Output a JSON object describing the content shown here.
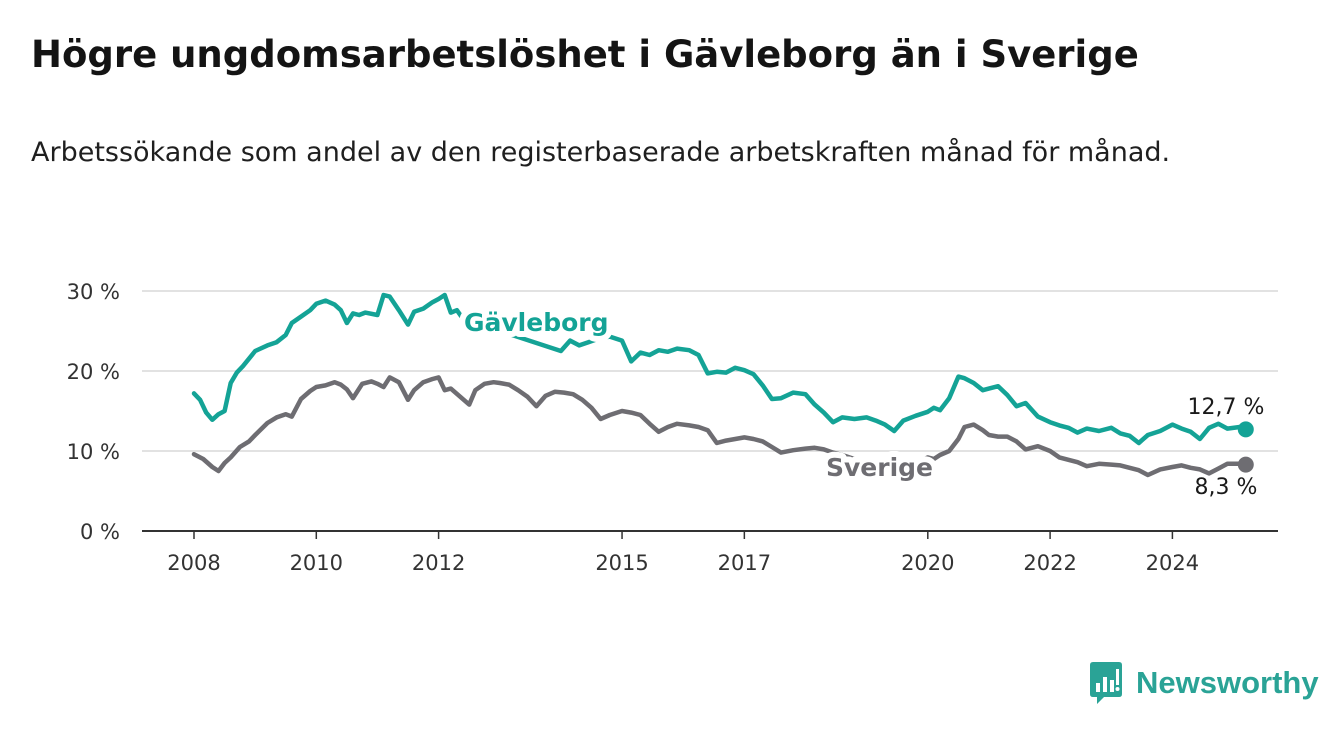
{
  "header": {
    "title": "Högre ungdomsarbetslöshet i Gävleborg än i Sverige",
    "subtitle": "Arbetssökande som andel av den registerbaserade arbetskraften månad för månad."
  },
  "brand": {
    "name": "Newsworthy",
    "icon": "bar-chart-icon",
    "color": "#2aa396"
  },
  "chart_data": {
    "type": "line",
    "title": "Högre ungdomsarbetslöshet i Gävleborg än i Sverige",
    "subtitle": "Arbetssökande som andel av den registerbaserade arbetskraften månad för månad.",
    "xlabel": "",
    "ylabel": "",
    "xlim": [
      2007.6,
      2025.8
    ],
    "ylim": [
      0,
      30
    ],
    "y_ticks": [
      0,
      10,
      20,
      30
    ],
    "y_tick_labels": [
      "0 %",
      "10 %",
      "20 %",
      "30 %"
    ],
    "x_ticks": [
      2008,
      2010,
      2012,
      2015,
      2017,
      2020,
      2022,
      2024
    ],
    "x_tick_labels": [
      "2008",
      "2010",
      "2012",
      "2015",
      "2017",
      "2020",
      "2022",
      "2024"
    ],
    "grid": true,
    "legend": "inline labels",
    "series": [
      {
        "name": "Gävleborg",
        "color": "#14a396",
        "end_label": "12,7 %",
        "x": [
          2008.0,
          2008.1,
          2008.2,
          2008.3,
          2008.4,
          2008.5,
          2008.6,
          2008.7,
          2008.8,
          2009.0,
          2009.2,
          2009.35,
          2009.5,
          2009.6,
          2009.75,
          2009.9,
          2010.0,
          2010.15,
          2010.3,
          2010.4,
          2010.5,
          2010.6,
          2010.7,
          2010.8,
          2011.0,
          2011.1,
          2011.2,
          2011.35,
          2011.5,
          2011.6,
          2011.75,
          2011.9,
          2012.0,
          2012.1,
          2012.2,
          2012.3,
          2012.4,
          2014.0,
          2014.15,
          2014.3,
          2014.45,
          2014.6,
          2014.8,
          2015.0,
          2015.15,
          2015.3,
          2015.45,
          2015.6,
          2015.75,
          2015.9,
          2016.1,
          2016.25,
          2016.4,
          2016.55,
          2016.7,
          2016.85,
          2017.0,
          2017.15,
          2017.3,
          2017.45,
          2017.6,
          2017.8,
          2018.0,
          2018.15,
          2018.3,
          2018.45,
          2018.6,
          2018.8,
          2019.0,
          2019.15,
          2019.3,
          2019.45,
          2019.6,
          2019.8,
          2020.0,
          2020.1,
          2020.2,
          2020.35,
          2020.5,
          2020.6,
          2020.75,
          2020.9,
          2021.0,
          2021.15,
          2021.3,
          2021.45,
          2021.6,
          2021.8,
          2022.0,
          2022.15,
          2022.3,
          2022.45,
          2022.6,
          2022.8,
          2023.0,
          2023.15,
          2023.3,
          2023.45,
          2023.6,
          2023.8,
          2024.0,
          2024.15,
          2024.3,
          2024.45,
          2024.6,
          2024.75,
          2024.9,
          2025.1,
          2025.2
        ],
        "y": [
          17.2,
          16.4,
          14.8,
          13.9,
          14.6,
          15.0,
          18.5,
          19.8,
          20.6,
          22.5,
          23.2,
          23.6,
          24.5,
          26.0,
          26.8,
          27.6,
          28.4,
          28.8,
          28.3,
          27.6,
          26.0,
          27.2,
          27.0,
          27.3,
          27.0,
          29.5,
          29.3,
          27.6,
          25.8,
          27.4,
          27.8,
          28.6,
          29.0,
          29.5,
          27.3,
          27.6,
          26.5,
          22.5,
          23.8,
          23.2,
          23.6,
          24.0,
          24.3,
          23.8,
          21.2,
          22.3,
          22.0,
          22.6,
          22.4,
          22.8,
          22.6,
          22.0,
          19.7,
          19.9,
          19.8,
          20.4,
          20.1,
          19.6,
          18.2,
          16.5,
          16.6,
          17.3,
          17.1,
          15.8,
          14.8,
          13.6,
          14.2,
          14.0,
          14.2,
          13.8,
          13.3,
          12.5,
          13.8,
          14.4,
          14.9,
          15.4,
          15.1,
          16.6,
          19.3,
          19.1,
          18.5,
          17.6,
          17.8,
          18.1,
          17.0,
          15.6,
          16.0,
          14.3,
          13.6,
          13.2,
          12.9,
          12.3,
          12.8,
          12.5,
          12.9,
          12.2,
          11.9,
          11.0,
          12.0,
          12.5,
          13.3,
          12.8,
          12.4,
          11.5,
          12.9,
          13.4,
          12.8,
          13.0,
          12.7
        ]
      },
      {
        "name": "Sverige",
        "color": "#6e6d72",
        "end_label": "8,3 %",
        "x": [
          2008.0,
          2008.15,
          2008.3,
          2008.4,
          2008.5,
          2008.6,
          2008.75,
          2008.9,
          2009.0,
          2009.2,
          2009.35,
          2009.5,
          2009.6,
          2009.75,
          2009.9,
          2010.0,
          2010.15,
          2010.3,
          2010.4,
          2010.5,
          2010.6,
          2010.75,
          2010.9,
          2011.0,
          2011.1,
          2011.2,
          2011.35,
          2011.5,
          2011.6,
          2011.75,
          2011.9,
          2012.0,
          2012.1,
          2012.2,
          2012.35,
          2012.5,
          2012.6,
          2012.75,
          2012.9,
          2013.0,
          2013.15,
          2013.3,
          2013.45,
          2013.6,
          2013.75,
          2013.9,
          2014.05,
          2014.2,
          2014.35,
          2014.5,
          2014.65,
          2014.8,
          2015.0,
          2015.15,
          2015.3,
          2015.45,
          2015.6,
          2015.75,
          2015.9,
          2016.1,
          2016.25,
          2016.4,
          2016.55,
          2016.7,
          2016.85,
          2017.0,
          2017.15,
          2017.3,
          2017.45,
          2017.6,
          2017.8,
          2018.0,
          2018.15,
          2018.3,
          2018.45,
          2018.6,
          2018.8,
          2019.0,
          2019.15,
          2019.3,
          2019.45,
          2019.6,
          2019.8,
          2020.0,
          2020.1,
          2020.2,
          2020.35,
          2020.5,
          2020.6,
          2020.75,
          2020.9,
          2021.0,
          2021.15,
          2021.3,
          2021.45,
          2021.6,
          2021.8,
          2022.0,
          2022.15,
          2022.3,
          2022.45,
          2022.6,
          2022.8,
          2023.0,
          2023.15,
          2023.3,
          2023.45,
          2023.6,
          2023.8,
          2024.0,
          2024.15,
          2024.3,
          2024.45,
          2024.6,
          2024.75,
          2024.9,
          2025.1,
          2025.2
        ],
        "y": [
          9.6,
          9.0,
          8.0,
          7.5,
          8.5,
          9.2,
          10.5,
          11.2,
          12.0,
          13.5,
          14.2,
          14.6,
          14.3,
          16.5,
          17.5,
          18.0,
          18.2,
          18.6,
          18.3,
          17.7,
          16.6,
          18.4,
          18.7,
          18.4,
          18.0,
          19.2,
          18.6,
          16.4,
          17.6,
          18.6,
          19.0,
          19.2,
          17.6,
          17.8,
          16.8,
          15.8,
          17.6,
          18.4,
          18.6,
          18.5,
          18.3,
          17.6,
          16.8,
          15.6,
          16.9,
          17.4,
          17.3,
          17.1,
          16.4,
          15.4,
          14.0,
          14.5,
          15.0,
          14.8,
          14.5,
          13.4,
          12.4,
          13.0,
          13.4,
          13.2,
          13.0,
          12.6,
          11.0,
          11.3,
          11.5,
          11.7,
          11.5,
          11.2,
          10.5,
          9.8,
          10.1,
          10.3,
          10.4,
          10.2,
          9.8,
          9.5,
          9.0,
          8.6,
          8.4,
          8.4,
          8.2,
          8.1,
          8.5,
          9.2,
          9.0,
          9.5,
          10.0,
          11.5,
          13.0,
          13.3,
          12.6,
          12.0,
          11.8,
          11.8,
          11.2,
          10.2,
          10.6,
          10.0,
          9.2,
          8.9,
          8.6,
          8.1,
          8.4,
          8.3,
          8.2,
          7.9,
          7.6,
          7.0,
          7.7,
          8.0,
          8.2,
          7.9,
          7.7,
          7.2,
          7.8,
          8.4,
          8.4,
          8.3
        ]
      }
    ]
  }
}
